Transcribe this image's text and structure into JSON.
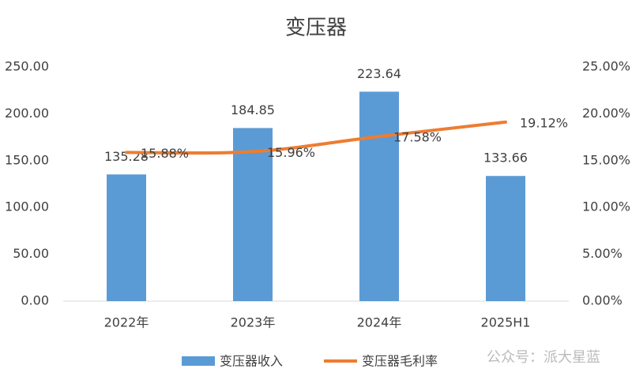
{
  "chart_data": {
    "type": "bar_line",
    "title": "变压器",
    "categories": [
      "2022年",
      "2023年",
      "2024年",
      "2025H1"
    ],
    "series": [
      {
        "name": "变压器收入",
        "type": "bar",
        "color": "#5b9bd5",
        "values": [
          135.28,
          184.85,
          223.64,
          133.66
        ]
      },
      {
        "name": "变压器毛利率",
        "type": "line",
        "color": "#ed7d31",
        "axis": "y2",
        "values": [
          15.88,
          15.96,
          17.58,
          19.12
        ],
        "value_labels": [
          "15.88%",
          "15.96%",
          "17.58%",
          "19.12%"
        ]
      }
    ],
    "ylim": [
      0,
      250
    ],
    "yticks": [
      {
        "value": 0,
        "label": "0.00"
      },
      {
        "value": 50,
        "label": "50.00"
      },
      {
        "value": 100,
        "label": "100.00"
      },
      {
        "value": 150,
        "label": "150.00"
      },
      {
        "value": 200,
        "label": "200.00"
      },
      {
        "value": 250,
        "label": "250.00"
      }
    ],
    "y2lim": [
      0,
      25
    ],
    "y2ticks": [
      {
        "value": 0,
        "label": "0.00%"
      },
      {
        "value": 5,
        "label": "5.00%"
      },
      {
        "value": 10,
        "label": "10.00%"
      },
      {
        "value": 15,
        "label": "15.00%"
      },
      {
        "value": 20,
        "label": "20.00%"
      },
      {
        "value": 25,
        "label": "25.00%"
      }
    ],
    "grid": false,
    "legend": "bottom",
    "watermark": "公众号：派大星蓝"
  }
}
